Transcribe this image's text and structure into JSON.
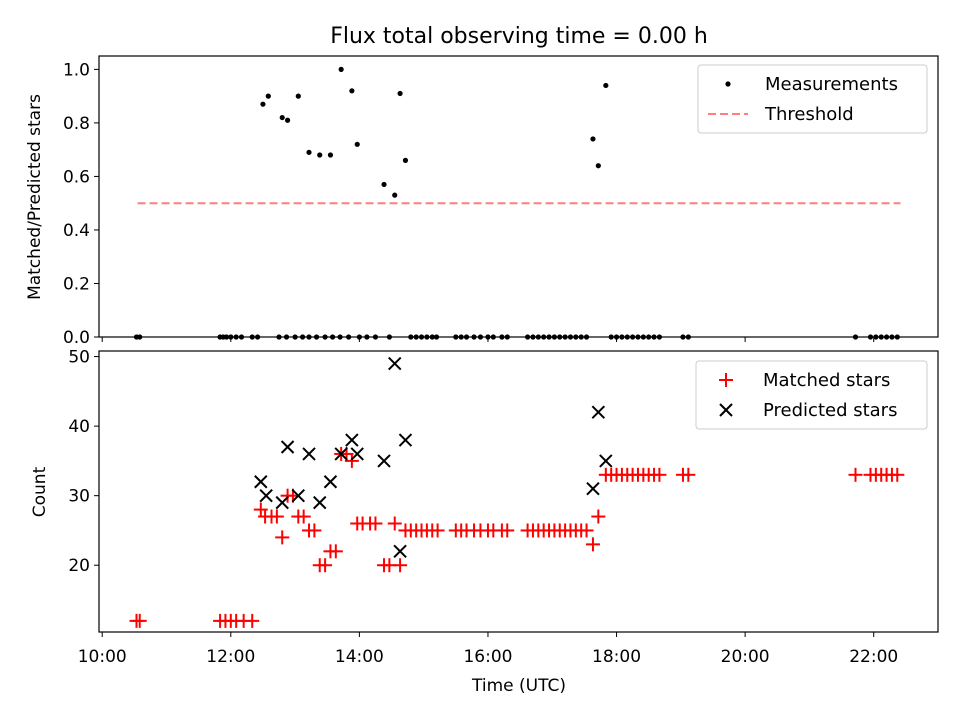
{
  "title": "Flux total observing time = 0.00 h",
  "chart_data": [
    {
      "type": "scatter",
      "ylabel": "Matched/Predicted stars",
      "ylim": [
        0,
        1.05
      ],
      "xlim": [
        "09:57",
        "23:00"
      ],
      "yticks": [
        "0.0",
        "0.2",
        "0.4",
        "0.6",
        "0.8",
        "1.0"
      ],
      "legend": {
        "placement": "top-right",
        "entries": [
          "Measurements",
          "Threshold"
        ]
      },
      "series": [
        {
          "name": "Measurements",
          "color": "#000000",
          "points": [
            [
              "10:32",
              0
            ],
            [
              "10:35",
              0
            ],
            [
              "11:50",
              0
            ],
            [
              "11:53",
              0
            ],
            [
              "11:56",
              0
            ],
            [
              "12:00",
              0
            ],
            [
              "12:05",
              0
            ],
            [
              "12:10",
              0
            ],
            [
              "12:20",
              0
            ],
            [
              "12:25",
              0
            ],
            [
              "12:30",
              0.87
            ],
            [
              "12:35",
              0.9
            ],
            [
              "12:48",
              0.82
            ],
            [
              "12:53",
              0.81
            ],
            [
              "13:03",
              0.9
            ],
            [
              "13:13",
              0.69
            ],
            [
              "13:23",
              0.68
            ],
            [
              "13:33",
              0.68
            ],
            [
              "13:43",
              1.0
            ],
            [
              "13:53",
              0.92
            ],
            [
              "13:58",
              0.72
            ],
            [
              "14:23",
              0.57
            ],
            [
              "14:33",
              0.53
            ],
            [
              "14:38",
              0.91
            ],
            [
              "14:43",
              0.66
            ],
            [
              "12:45",
              0
            ],
            [
              "12:52",
              0
            ],
            [
              "13:00",
              0
            ],
            [
              "13:07",
              0
            ],
            [
              "13:13",
              0
            ],
            [
              "13:20",
              0
            ],
            [
              "13:28",
              0
            ],
            [
              "13:35",
              0
            ],
            [
              "13:42",
              0
            ],
            [
              "13:50",
              0
            ],
            [
              "14:00",
              0
            ],
            [
              "14:07",
              0
            ],
            [
              "14:15",
              0
            ],
            [
              "14:28",
              0
            ],
            [
              "14:48",
              0
            ],
            [
              "14:53",
              0
            ],
            [
              "14:58",
              0
            ],
            [
              "15:03",
              0
            ],
            [
              "15:08",
              0
            ],
            [
              "15:12",
              0
            ],
            [
              "15:30",
              0
            ],
            [
              "15:35",
              0
            ],
            [
              "15:40",
              0
            ],
            [
              "15:47",
              0
            ],
            [
              "15:53",
              0
            ],
            [
              "16:00",
              0
            ],
            [
              "16:05",
              0
            ],
            [
              "16:13",
              0
            ],
            [
              "16:18",
              0
            ],
            [
              "16:37",
              0
            ],
            [
              "16:42",
              0
            ],
            [
              "16:47",
              0
            ],
            [
              "16:52",
              0
            ],
            [
              "16:57",
              0
            ],
            [
              "17:02",
              0
            ],
            [
              "17:07",
              0
            ],
            [
              "17:12",
              0
            ],
            [
              "17:17",
              0
            ],
            [
              "17:22",
              0
            ],
            [
              "17:27",
              0
            ],
            [
              "17:32",
              0
            ],
            [
              "17:38",
              0.74
            ],
            [
              "17:43",
              0.64
            ],
            [
              "17:50",
              0.94
            ],
            [
              "17:55",
              0
            ],
            [
              "18:00",
              0
            ],
            [
              "18:05",
              0
            ],
            [
              "18:10",
              0
            ],
            [
              "18:15",
              0
            ],
            [
              "18:20",
              0
            ],
            [
              "18:25",
              0
            ],
            [
              "18:30",
              0
            ],
            [
              "18:35",
              0
            ],
            [
              "18:40",
              0
            ],
            [
              "19:02",
              0
            ],
            [
              "19:07",
              0
            ],
            [
              "21:43",
              0
            ],
            [
              "21:57",
              0
            ],
            [
              "22:02",
              0
            ],
            [
              "22:07",
              0
            ],
            [
              "22:12",
              0
            ],
            [
              "22:17",
              0
            ],
            [
              "22:22",
              0
            ]
          ]
        },
        {
          "name": "Threshold",
          "color": "#ff7f7f",
          "style": "dashed",
          "points": [
            [
              "10:33",
              0.5
            ],
            [
              "22:25",
              0.5
            ]
          ]
        }
      ]
    },
    {
      "type": "scatter",
      "xlabel": "Time (UTC)",
      "ylabel": "Count",
      "ylim": [
        10.4,
        50.8
      ],
      "xlim": [
        "09:57",
        "23:00"
      ],
      "yticks": [
        "20",
        "30",
        "40",
        "50"
      ],
      "xticks": [
        "10:00",
        "12:00",
        "14:00",
        "16:00",
        "18:00",
        "20:00",
        "22:00"
      ],
      "legend": {
        "placement": "top-right",
        "entries": [
          "Matched stars",
          "Predicted stars"
        ]
      },
      "series": [
        {
          "name": "Matched stars",
          "color": "#ff0000",
          "marker": "+",
          "points": [
            [
              "10:32",
              12
            ],
            [
              "10:35",
              12
            ],
            [
              "11:50",
              12
            ],
            [
              "11:55",
              12
            ],
            [
              "12:00",
              12
            ],
            [
              "12:05",
              12
            ],
            [
              "12:12",
              12
            ],
            [
              "12:20",
              12
            ],
            [
              "12:28",
              28
            ],
            [
              "12:32",
              27
            ],
            [
              "12:38",
              27
            ],
            [
              "12:43",
              27
            ],
            [
              "12:48",
              24
            ],
            [
              "12:53",
              30
            ],
            [
              "12:58",
              30
            ],
            [
              "13:03",
              27
            ],
            [
              "13:08",
              27
            ],
            [
              "13:13",
              25
            ],
            [
              "13:18",
              25
            ],
            [
              "13:23",
              20
            ],
            [
              "13:28",
              20
            ],
            [
              "13:33",
              22
            ],
            [
              "13:38",
              22
            ],
            [
              "13:43",
              36
            ],
            [
              "13:48",
              36
            ],
            [
              "13:53",
              35
            ],
            [
              "13:58",
              26
            ],
            [
              "14:03",
              26
            ],
            [
              "14:10",
              26
            ],
            [
              "14:15",
              26
            ],
            [
              "14:23",
              20
            ],
            [
              "14:28",
              20
            ],
            [
              "14:33",
              26
            ],
            [
              "14:38",
              20
            ],
            [
              "14:43",
              25
            ],
            [
              "14:48",
              25
            ],
            [
              "14:53",
              25
            ],
            [
              "14:58",
              25
            ],
            [
              "15:03",
              25
            ],
            [
              "15:08",
              25
            ],
            [
              "15:13",
              25
            ],
            [
              "15:30",
              25
            ],
            [
              "15:35",
              25
            ],
            [
              "15:40",
              25
            ],
            [
              "15:47",
              25
            ],
            [
              "15:53",
              25
            ],
            [
              "16:00",
              25
            ],
            [
              "16:05",
              25
            ],
            [
              "16:13",
              25
            ],
            [
              "16:18",
              25
            ],
            [
              "16:37",
              25
            ],
            [
              "16:42",
              25
            ],
            [
              "16:47",
              25
            ],
            [
              "16:52",
              25
            ],
            [
              "16:57",
              25
            ],
            [
              "17:02",
              25
            ],
            [
              "17:07",
              25
            ],
            [
              "17:12",
              25
            ],
            [
              "17:17",
              25
            ],
            [
              "17:22",
              25
            ],
            [
              "17:27",
              25
            ],
            [
              "17:32",
              25
            ],
            [
              "17:38",
              23
            ],
            [
              "17:43",
              27
            ],
            [
              "17:50",
              33
            ],
            [
              "17:55",
              33
            ],
            [
              "18:00",
              33
            ],
            [
              "18:05",
              33
            ],
            [
              "18:10",
              33
            ],
            [
              "18:15",
              33
            ],
            [
              "18:20",
              33
            ],
            [
              "18:25",
              33
            ],
            [
              "18:30",
              33
            ],
            [
              "18:35",
              33
            ],
            [
              "18:40",
              33
            ],
            [
              "19:02",
              33
            ],
            [
              "19:07",
              33
            ],
            [
              "21:43",
              33
            ],
            [
              "21:57",
              33
            ],
            [
              "22:02",
              33
            ],
            [
              "22:07",
              33
            ],
            [
              "22:12",
              33
            ],
            [
              "22:17",
              33
            ],
            [
              "22:22",
              33
            ]
          ]
        },
        {
          "name": "Predicted stars",
          "color": "#000000",
          "marker": "x",
          "points": [
            [
              "12:28",
              32
            ],
            [
              "12:33",
              30
            ],
            [
              "12:48",
              29
            ],
            [
              "12:53",
              37
            ],
            [
              "13:03",
              30
            ],
            [
              "13:13",
              36
            ],
            [
              "13:23",
              29
            ],
            [
              "13:33",
              32
            ],
            [
              "13:43",
              36
            ],
            [
              "13:53",
              38
            ],
            [
              "13:58",
              36
            ],
            [
              "14:23",
              35
            ],
            [
              "14:33",
              49
            ],
            [
              "14:38",
              22
            ],
            [
              "14:43",
              38
            ],
            [
              "17:38",
              31
            ],
            [
              "17:43",
              42
            ],
            [
              "17:50",
              35
            ]
          ]
        }
      ]
    }
  ]
}
